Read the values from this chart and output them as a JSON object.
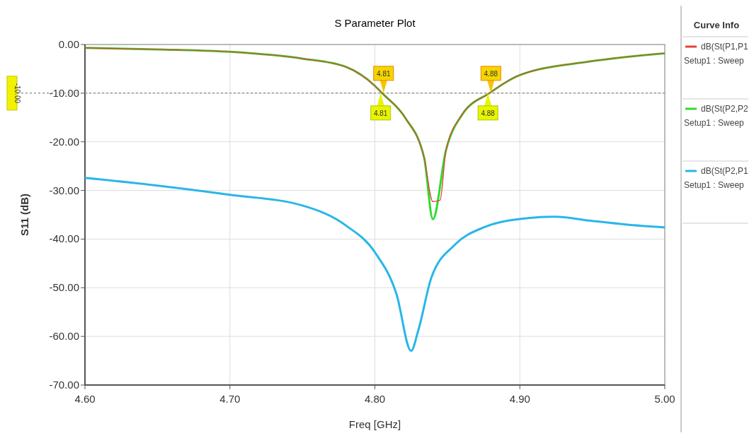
{
  "chart_data": {
    "type": "line",
    "title": "S Parameter Plot",
    "xlabel": "Freq [GHz]",
    "ylabel": "S11 (dB)",
    "legend_title": "Curve Info",
    "xlim": [
      4.6,
      5.0
    ],
    "xticks": [
      {
        "value": 4.6,
        "label": "4.60"
      },
      {
        "value": 4.7,
        "label": "4.70"
      },
      {
        "value": 4.8,
        "label": "4.80"
      },
      {
        "value": 4.9,
        "label": "4.90"
      },
      {
        "value": 5.0,
        "label": "5.00"
      }
    ],
    "ylim": [
      -70,
      0
    ],
    "yticks": [
      {
        "value": 0,
        "label": "0.00"
      },
      {
        "value": -10,
        "label": "-10.00"
      },
      {
        "value": -20,
        "label": "-20.00"
      },
      {
        "value": -30,
        "label": "-30.00"
      },
      {
        "value": -40,
        "label": "-40.00"
      },
      {
        "value": -50,
        "label": "-50.00"
      },
      {
        "value": -60,
        "label": "-60.00"
      },
      {
        "value": -70,
        "label": "-70.00"
      }
    ],
    "grid": true,
    "legend": "right",
    "marker": "none",
    "line_style": "solid",
    "ref_lines": [
      {
        "axis": "y",
        "value": -10,
        "label": "-10.00",
        "color": "#999999",
        "line_style": "dotted"
      }
    ],
    "annotations": [
      {
        "text": "4.81",
        "x": 4.806,
        "y": -10
      },
      {
        "text": "4.81",
        "x": 4.804,
        "y": -10
      },
      {
        "text": "4.88",
        "x": 4.88,
        "y": -10
      },
      {
        "text": "4.88",
        "x": 4.878,
        "y": -10
      }
    ],
    "series": [
      {
        "name": "dB(St(P1,P1\nSetup1 : Sweep",
        "color": "#e8403a",
        "x": [
          4.6,
          4.65,
          4.7,
          4.75,
          4.78,
          4.8,
          4.805,
          4.821,
          4.834,
          4.84,
          4.845,
          4.849,
          4.86,
          4.879,
          4.899,
          4.948,
          5.0
        ],
        "values": [
          -0.7,
          -1.0,
          -1.5,
          -2.9,
          -4.6,
          -8.5,
          -10,
          -15.1,
          -23.3,
          -32.3,
          -32.0,
          -21.8,
          -14.5,
          -10,
          -6.4,
          -3.5,
          -1.8
        ]
      },
      {
        "name": "dB(St(P2,P2\nSetup1 : Sweep",
        "color": "#2ddc2d",
        "x": [
          4.6,
          4.65,
          4.7,
          4.75,
          4.78,
          4.8,
          4.805,
          4.821,
          4.834,
          4.84,
          4.849,
          4.86,
          4.879,
          4.899,
          4.948,
          5.0
        ],
        "values": [
          -0.7,
          -1.0,
          -1.5,
          -2.9,
          -4.6,
          -8.5,
          -10,
          -15.1,
          -23.3,
          -35.9,
          -21.8,
          -14.5,
          -10,
          -6.4,
          -3.5,
          -1.8
        ]
      },
      {
        "name": "dB(St(P2,P1\nSetup1 : Sweep",
        "color": "#29b6e8",
        "x": [
          4.6,
          4.65,
          4.7,
          4.75,
          4.78,
          4.8,
          4.815,
          4.825,
          4.83,
          4.839,
          4.855,
          4.875,
          4.899,
          4.924,
          4.948,
          4.973,
          5.0
        ],
        "values": [
          -27.4,
          -29.0,
          -30.9,
          -33.1,
          -37.2,
          -42.7,
          -51.4,
          -63.0,
          -58.7,
          -47.9,
          -41.2,
          -37.6,
          -35.9,
          -35.4,
          -36.2,
          -37.0,
          -37.6
        ]
      }
    ]
  }
}
